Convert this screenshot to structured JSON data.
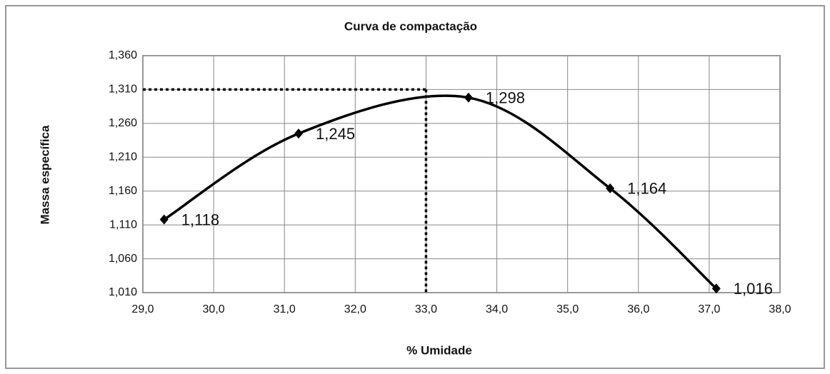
{
  "chart_data": {
    "type": "line",
    "title": "Curva de compactação",
    "xlabel": "% Umidade",
    "ylabel": "Massa específica",
    "series": [
      {
        "name": "Massa específica",
        "color": "#000000",
        "x": [
          29.3,
          31.2,
          33.6,
          35.6,
          37.1
        ],
        "values": [
          1.118,
          1.245,
          1.298,
          1.164,
          1.016
        ],
        "value_labels": [
          "1,118",
          "1,245",
          "1,298",
          "1,164",
          "1,016"
        ]
      }
    ],
    "optimum": {
      "x": 33.0,
      "y": 1.31
    },
    "xlim": [
      29,
      38
    ],
    "xticks": [
      {
        "value": 29,
        "label": "29,0"
      },
      {
        "value": 30,
        "label": "30,0"
      },
      {
        "value": 31,
        "label": "31,0"
      },
      {
        "value": 32,
        "label": "32,0"
      },
      {
        "value": 33,
        "label": "33,0"
      },
      {
        "value": 34,
        "label": "34,0"
      },
      {
        "value": 35,
        "label": "35,0"
      },
      {
        "value": 36,
        "label": "36,0"
      },
      {
        "value": 37,
        "label": "37,0"
      },
      {
        "value": 38,
        "label": "38,0"
      }
    ],
    "ylim": [
      1.01,
      1.36
    ],
    "yticks": [
      {
        "value": 1.01,
        "label": "1,010"
      },
      {
        "value": 1.06,
        "label": "1,060"
      },
      {
        "value": 1.11,
        "label": "1,110"
      },
      {
        "value": 1.16,
        "label": "1,160"
      },
      {
        "value": 1.21,
        "label": "1,210"
      },
      {
        "value": 1.26,
        "label": "1,260"
      },
      {
        "value": 1.31,
        "label": "1,310"
      },
      {
        "value": 1.36,
        "label": "1,360"
      }
    ],
    "grid": true
  }
}
